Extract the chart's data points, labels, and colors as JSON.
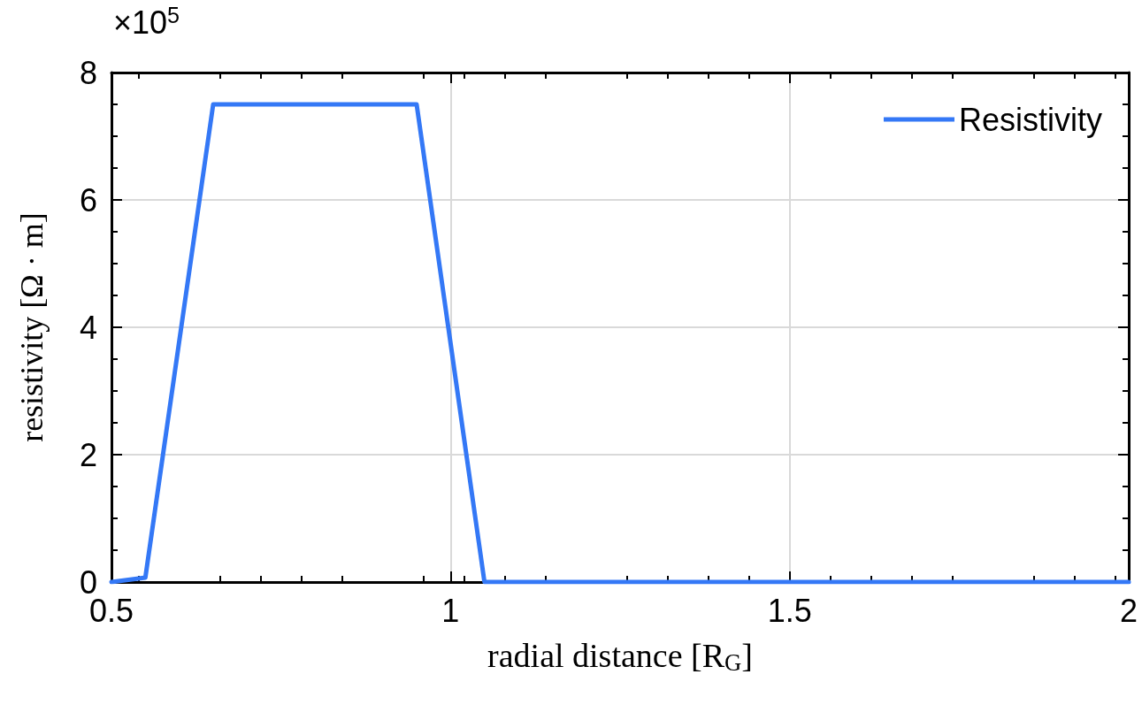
{
  "chart_data": {
    "type": "line",
    "xlabel": "radial distance [R$_{G}$]",
    "ylabel": "resistivity [Ω · m]",
    "annotations": [
      "×10$^{5}$"
    ],
    "series": [
      {
        "name": "Resistivity",
        "color": "#3478f6",
        "x": [
          0.5,
          0.55,
          0.65,
          0.95,
          1.05,
          2
        ],
        "values": [
          0,
          0.07,
          7.5,
          7.5,
          0,
          0
        ]
      }
    ],
    "xlim": [
      0.5,
      2
    ],
    "xticks": [
      0.5,
      1,
      1.5,
      2
    ],
    "ylim": [
      0,
      8
    ],
    "yticks": [
      0,
      2,
      4,
      6,
      8
    ],
    "grid": true,
    "legend": "top right",
    "marker": "none",
    "line_style": "solid"
  }
}
